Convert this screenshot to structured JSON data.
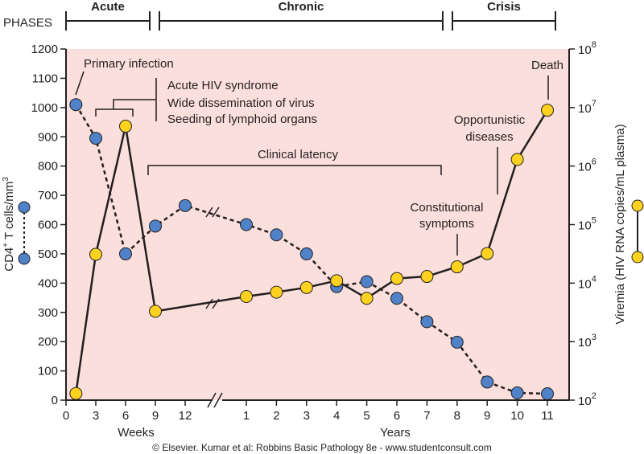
{
  "phases": {
    "header": "PHASES",
    "items": [
      {
        "label": "Acute"
      },
      {
        "label": "Chronic"
      },
      {
        "label": "Crisis"
      }
    ]
  },
  "colors": {
    "plot_background": "#fbdfdc",
    "cd4_marker": "#4f82c9",
    "viremia_marker": "#ffd21f",
    "line": "#231f20"
  },
  "chart_data": {
    "type": "line",
    "x_axis": {
      "weeks_ticks": [
        "0",
        "3",
        "6",
        "9",
        "12"
      ],
      "years_ticks": [
        "1",
        "2",
        "3",
        "4",
        "5",
        "6",
        "7",
        "8",
        "9",
        "10",
        "11"
      ],
      "weeks_label": "Weeks",
      "years_label": "Years",
      "axis_break": true
    },
    "y_left": {
      "label": "CD4+ T cells/mm3",
      "range": [
        0,
        1200
      ],
      "ticks": [
        "0",
        "100",
        "200",
        "300",
        "400",
        "500",
        "600",
        "700",
        "800",
        "900",
        "1000",
        "1100",
        "1200"
      ]
    },
    "y_right": {
      "label": "Viremia (HIV RNA copies/mL plasma)",
      "scale": "log",
      "range": [
        100,
        100000000
      ],
      "ticks": [
        "10^2",
        "10^3",
        "10^4",
        "10^5",
        "10^6",
        "10^7",
        "10^8"
      ]
    },
    "series": [
      {
        "key": "cd4",
        "style": "dashed",
        "points": [
          {
            "x": "1 week",
            "y": 1010
          },
          {
            "x": "3 weeks",
            "y": 895
          },
          {
            "x": "6 weeks",
            "y": 500
          },
          {
            "x": "9 weeks",
            "y": 595
          },
          {
            "x": "12 weeks",
            "y": 665
          },
          {
            "x": "1 year",
            "y": 600
          },
          {
            "x": "2 years",
            "y": 565
          },
          {
            "x": "3 years",
            "y": 500
          },
          {
            "x": "4 years",
            "y": 388
          },
          {
            "x": "5 years",
            "y": 405
          },
          {
            "x": "6 years",
            "y": 348
          },
          {
            "x": "7 years",
            "y": 268
          },
          {
            "x": "8 years",
            "y": 198
          },
          {
            "x": "9 years",
            "y": 62
          },
          {
            "x": "10 years",
            "y": 25
          },
          {
            "x": "11 years",
            "y": 22
          }
        ]
      },
      {
        "key": "viremia",
        "style": "solid",
        "points": [
          {
            "x": "1 week",
            "y": 130
          },
          {
            "x": "3 weeks",
            "y": 31000
          },
          {
            "x": "6 weeks",
            "y": 4800000
          },
          {
            "x": "9 weeks",
            "y": 3300
          },
          {
            "x": "1 year",
            "y": 5900
          },
          {
            "x": "2 years",
            "y": 7000
          },
          {
            "x": "3 years",
            "y": 8400
          },
          {
            "x": "4 years",
            "y": 11000
          },
          {
            "x": "5 years",
            "y": 5500
          },
          {
            "x": "6 years",
            "y": 12000
          },
          {
            "x": "7 years",
            "y": 13000
          },
          {
            "x": "8 years",
            "y": 19000
          },
          {
            "x": "9 years",
            "y": 32000
          },
          {
            "x": "10 years",
            "y": 1300000
          },
          {
            "x": "11 years",
            "y": 9000000
          }
        ]
      }
    ],
    "annotations": {
      "primary_infection": "Primary infection",
      "acute_1": "Acute HIV syndrome",
      "acute_2": "Wide dissemination of virus",
      "acute_3": "Seeding of lymphoid organs",
      "clinical_latency": "Clinical latency",
      "constitutional_1": "Constitutional",
      "constitutional_2": "symptoms",
      "opportunistic_1": "Opportunistic",
      "opportunistic_2": "diseases",
      "death": "Death"
    },
    "copyright": "© Elsevier. Kumar et al: Robbins Basic Pathology 8e - www.studentconsult.com"
  }
}
